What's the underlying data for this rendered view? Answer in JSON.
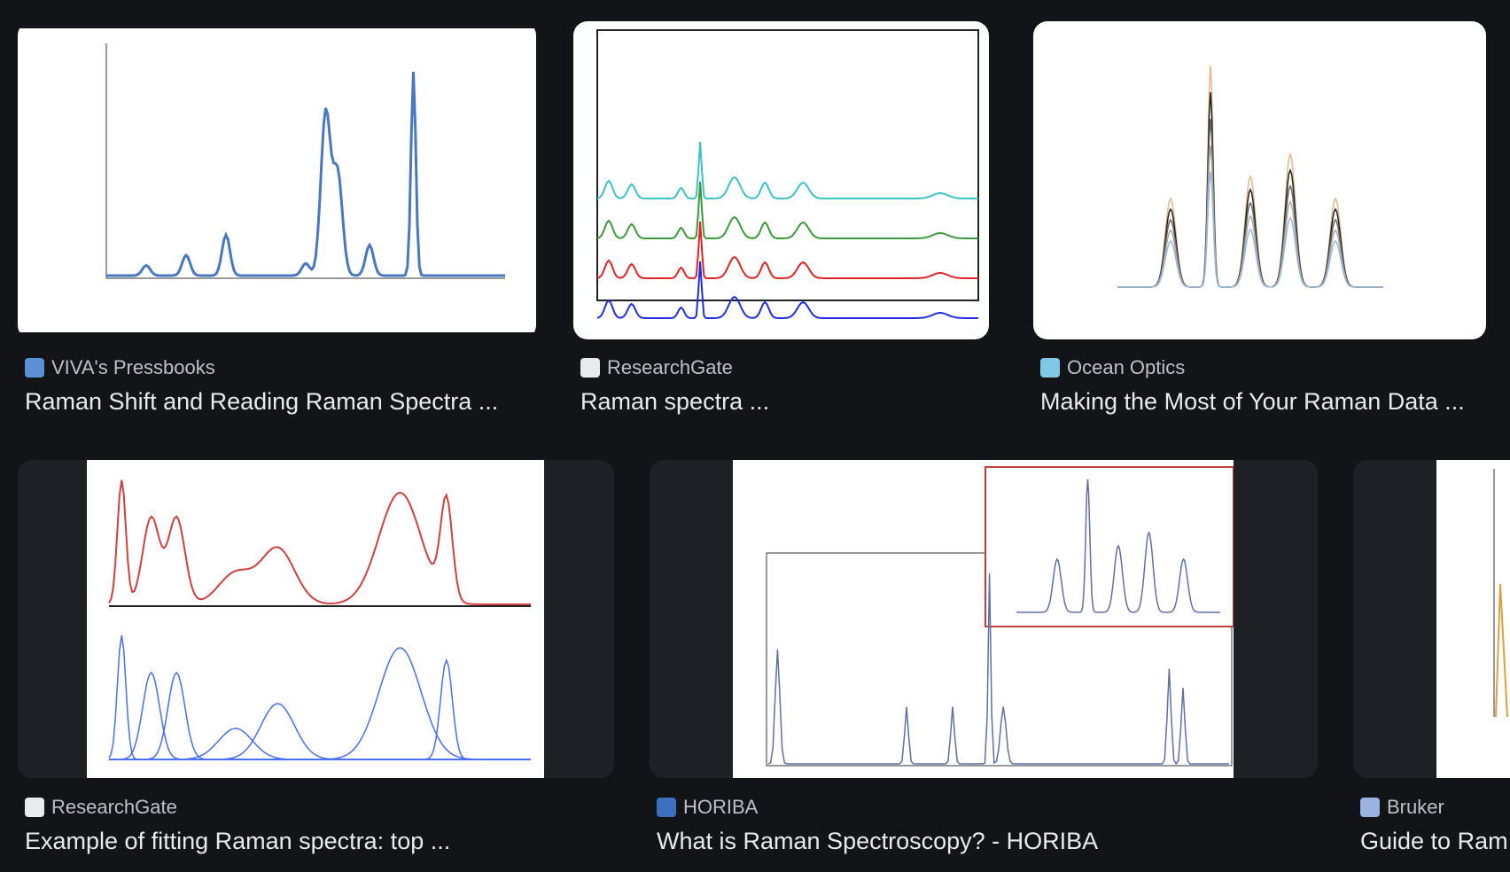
{
  "results": [
    {
      "source": "VIVA's Pressbooks",
      "title": "Raman Shift and Reading Raman Spectra ..."
    },
    {
      "source": "ResearchGate",
      "title": "Raman spectra ..."
    },
    {
      "source": "Ocean Optics",
      "title": "Making the Most of Your Raman Data ..."
    },
    {
      "source": "ResearchGate",
      "title": "Example of fitting Raman spectra: top ..."
    },
    {
      "source": "HORIBA",
      "title": "What is Raman Spectroscopy? - HORIBA"
    },
    {
      "source": "Bruker",
      "title": "Guide to Ram"
    }
  ]
}
